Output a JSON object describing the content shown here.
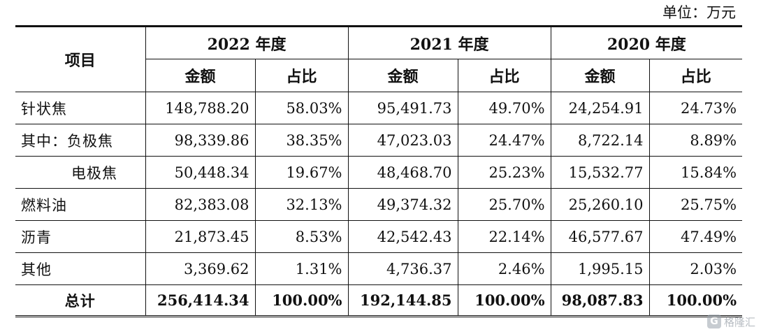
{
  "unit_note": "单位：万元",
  "table": {
    "item_header": "项目",
    "years": [
      "2022 年度",
      "2021 年度",
      "2020 年度"
    ],
    "sub_headers": {
      "amount": "金额",
      "share": "占比"
    },
    "rows": [
      {
        "label": "针状焦",
        "indent": false,
        "values": [
          "148,788.20",
          "58.03%",
          "95,491.73",
          "49.70%",
          "24,254.91",
          "24.73%"
        ]
      },
      {
        "label": "其中：负极焦",
        "indent": false,
        "values": [
          "98,339.86",
          "38.35%",
          "47,023.03",
          "24.47%",
          "8,722.14",
          "8.89%"
        ]
      },
      {
        "label": "电极焦",
        "indent": true,
        "values": [
          "50,448.34",
          "19.67%",
          "48,468.70",
          "25.23%",
          "15,532.77",
          "15.84%"
        ]
      },
      {
        "label": "燃料油",
        "indent": false,
        "values": [
          "82,383.08",
          "32.13%",
          "49,374.32",
          "25.70%",
          "25,260.10",
          "25.75%"
        ]
      },
      {
        "label": "沥青",
        "indent": false,
        "values": [
          "21,873.45",
          "8.53%",
          "42,542.43",
          "22.14%",
          "46,577.67",
          "47.49%"
        ]
      },
      {
        "label": "其他",
        "indent": false,
        "values": [
          "3,369.62",
          "1.31%",
          "4,736.37",
          "2.46%",
          "1,995.15",
          "2.03%"
        ]
      }
    ],
    "total": {
      "label": "总计",
      "values": [
        "256,414.34",
        "100.00%",
        "192,144.85",
        "100.00%",
        "98,087.83",
        "100.00%"
      ]
    }
  },
  "watermark": {
    "icon": "G",
    "text": "格隆汇"
  }
}
